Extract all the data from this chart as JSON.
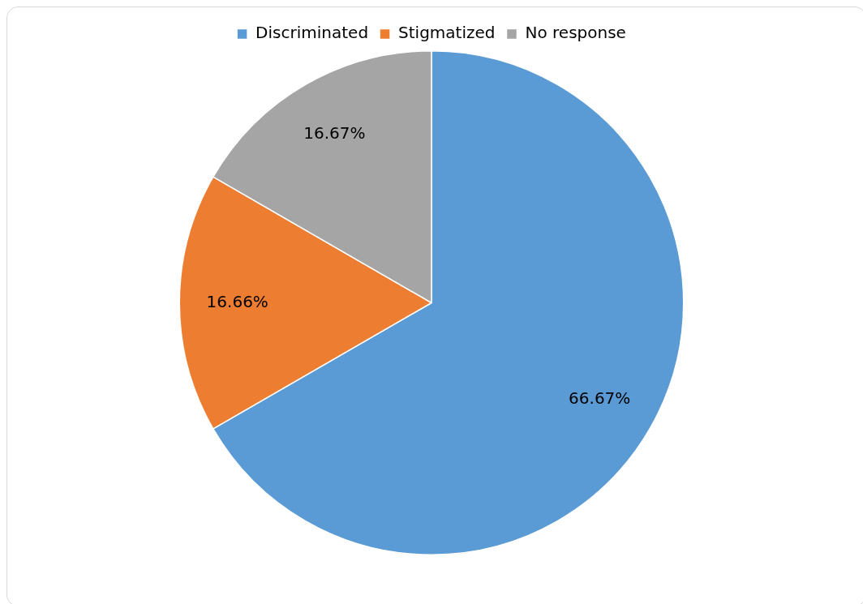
{
  "chart_data": {
    "type": "pie",
    "categories": [
      "Discriminated",
      "Stigmatized",
      "No response"
    ],
    "values": [
      66.67,
      16.66,
      16.67
    ],
    "colors": [
      "#5b9bd5",
      "#ed7d31",
      "#a5a5a5"
    ],
    "value_labels": [
      "66.67%",
      "16.66%",
      "16.67%"
    ],
    "legend": "top"
  }
}
